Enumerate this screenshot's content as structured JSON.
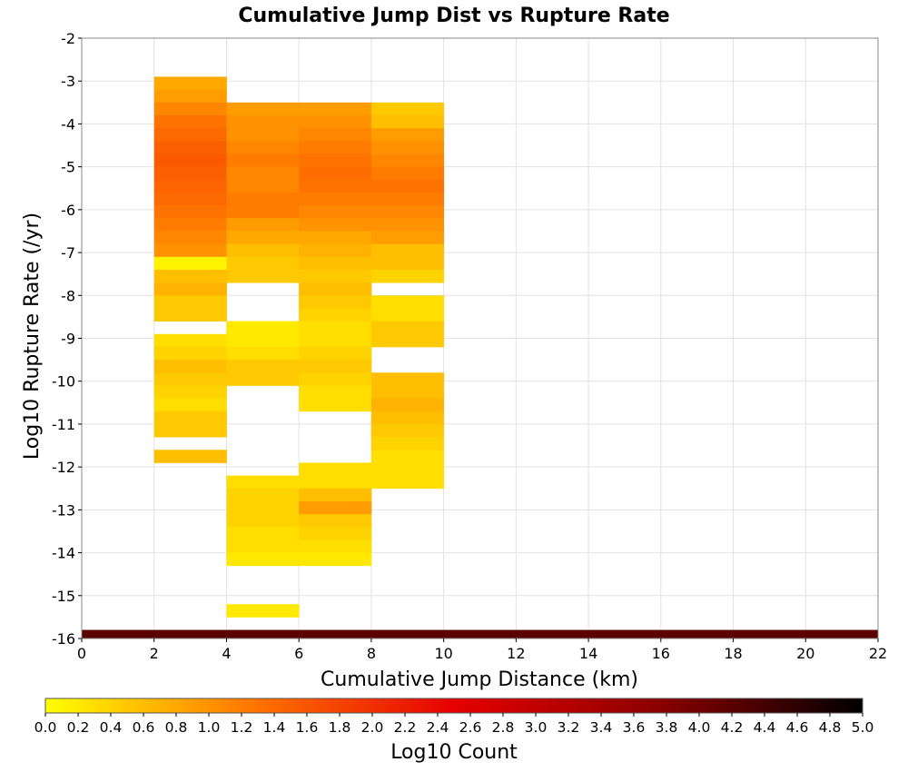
{
  "chart_data": {
    "type": "heatmap",
    "title": "Cumulative Jump Dist vs Rupture Rate",
    "xlabel": "Cumulative Jump Distance (km)",
    "ylabel": "Log10 Rupture Rate (/yr)",
    "colorbar_label": "Log10 Count",
    "xlim": [
      0,
      22
    ],
    "ylim": [
      -16,
      -2
    ],
    "x_ticks": [
      "0",
      "2",
      "4",
      "6",
      "8",
      "10",
      "12",
      "14",
      "16",
      "18",
      "20",
      "22"
    ],
    "y_ticks": [
      "-2",
      "-3",
      "-4",
      "-5",
      "-6",
      "-7",
      "-8",
      "-9",
      "-10",
      "-11",
      "-12",
      "-13",
      "-14",
      "-15",
      "-16"
    ],
    "colorbar_range": [
      0,
      5
    ],
    "colorbar_ticks": [
      "0.0",
      "0.2",
      "0.4",
      "0.6",
      "0.8",
      "1.0",
      "1.2",
      "1.4",
      "1.6",
      "1.8",
      "2.0",
      "2.2",
      "2.4",
      "2.6",
      "2.8",
      "3.0",
      "3.2",
      "3.4",
      "3.6",
      "3.8",
      "4.0",
      "4.2",
      "4.4",
      "4.6",
      "4.8",
      "5.0"
    ],
    "grid": true,
    "colorscale": [
      "#ffff00",
      "#ff7700",
      "#e60000",
      "#8c0000",
      "#000000"
    ],
    "x_bin_edges": [
      0,
      2,
      4,
      6,
      8,
      10,
      12,
      14,
      16,
      18,
      20,
      22
    ],
    "y_bin_width": 0.3,
    "y_bin_top": -2,
    "column_values": [
      [
        null,
        null,
        null,
        null,
        null,
        null,
        null,
        null,
        null,
        null,
        null,
        null,
        null,
        null,
        null,
        null,
        null,
        null,
        null,
        null,
        null,
        null,
        null,
        null,
        null,
        null,
        null,
        null,
        null,
        null,
        null,
        null,
        null,
        null,
        null,
        null,
        null,
        null,
        null,
        null,
        null,
        null,
        null,
        null,
        null,
        null,
        4.2
      ],
      [
        null,
        null,
        null,
        0.8,
        0.9,
        1.1,
        1.3,
        1.4,
        1.5,
        1.55,
        1.5,
        1.45,
        1.4,
        1.3,
        1.2,
        1.1,
        1.0,
        0.1,
        0.6,
        0.7,
        0.5,
        0.5,
        null,
        0.3,
        0.4,
        0.6,
        0.5,
        0.4,
        0.3,
        0.5,
        0.5,
        null,
        0.6,
        null,
        null,
        null,
        null,
        null,
        null,
        null,
        null,
        null,
        null,
        null,
        null,
        null,
        4.2
      ],
      [
        null,
        null,
        null,
        null,
        null,
        0.9,
        1.0,
        1.0,
        1.1,
        1.2,
        1.1,
        1.1,
        1.2,
        1.2,
        0.9,
        0.8,
        0.6,
        0.5,
        0.5,
        null,
        null,
        null,
        0.2,
        0.2,
        0.3,
        0.5,
        0.5,
        null,
        null,
        null,
        null,
        null,
        null,
        null,
        0.3,
        0.4,
        0.4,
        0.4,
        0.3,
        0.3,
        0.2,
        null,
        null,
        null,
        0.2,
        null,
        4.2
      ],
      [
        null,
        null,
        null,
        null,
        null,
        0.9,
        1.0,
        1.1,
        1.2,
        1.3,
        1.35,
        1.3,
        1.2,
        1.1,
        1.0,
        0.8,
        0.7,
        0.6,
        0.5,
        0.6,
        0.5,
        0.4,
        0.3,
        0.3,
        0.4,
        0.5,
        0.4,
        0.3,
        0.3,
        null,
        null,
        null,
        null,
        0.3,
        0.3,
        0.6,
        0.9,
        0.5,
        0.4,
        0.3,
        0.2,
        null,
        null,
        null,
        null,
        null,
        4.2
      ],
      [
        null,
        null,
        null,
        null,
        null,
        0.5,
        0.6,
        0.9,
        1.0,
        1.1,
        1.2,
        1.3,
        1.2,
        1.1,
        1.0,
        0.9,
        0.6,
        0.6,
        0.4,
        null,
        0.3,
        0.3,
        0.5,
        0.5,
        null,
        null,
        0.6,
        0.6,
        0.7,
        0.6,
        0.5,
        0.4,
        0.3,
        0.3,
        0.3,
        null,
        null,
        null,
        null,
        null,
        null,
        null,
        null,
        null,
        null,
        null,
        4.2
      ],
      [
        null,
        null,
        null,
        null,
        null,
        null,
        null,
        null,
        null,
        null,
        null,
        null,
        null,
        null,
        null,
        null,
        null,
        null,
        null,
        null,
        null,
        null,
        null,
        null,
        null,
        null,
        null,
        null,
        null,
        null,
        null,
        null,
        null,
        null,
        null,
        null,
        null,
        null,
        null,
        null,
        null,
        null,
        null,
        null,
        null,
        null,
        4.2
      ],
      [
        null,
        null,
        null,
        null,
        null,
        null,
        null,
        null,
        null,
        null,
        null,
        null,
        null,
        null,
        null,
        null,
        null,
        null,
        null,
        null,
        null,
        null,
        null,
        null,
        null,
        null,
        null,
        null,
        null,
        null,
        null,
        null,
        null,
        null,
        null,
        null,
        null,
        null,
        null,
        null,
        null,
        null,
        null,
        null,
        null,
        null,
        4.2
      ],
      [
        null,
        null,
        null,
        null,
        null,
        null,
        null,
        null,
        null,
        null,
        null,
        null,
        null,
        null,
        null,
        null,
        null,
        null,
        null,
        null,
        null,
        null,
        null,
        null,
        null,
        null,
        null,
        null,
        null,
        null,
        null,
        null,
        null,
        null,
        null,
        null,
        null,
        null,
        null,
        null,
        null,
        null,
        null,
        null,
        null,
        null,
        4.2
      ],
      [
        null,
        null,
        null,
        null,
        null,
        null,
        null,
        null,
        null,
        null,
        null,
        null,
        null,
        null,
        null,
        null,
        null,
        null,
        null,
        null,
        null,
        null,
        null,
        null,
        null,
        null,
        null,
        null,
        null,
        null,
        null,
        null,
        null,
        null,
        null,
        null,
        null,
        null,
        null,
        null,
        null,
        null,
        null,
        null,
        null,
        null,
        4.2
      ],
      [
        null,
        null,
        null,
        null,
        null,
        null,
        null,
        null,
        null,
        null,
        null,
        null,
        null,
        null,
        null,
        null,
        null,
        null,
        null,
        null,
        null,
        null,
        null,
        null,
        null,
        null,
        null,
        null,
        null,
        null,
        null,
        null,
        null,
        null,
        null,
        null,
        null,
        null,
        null,
        null,
        null,
        null,
        null,
        null,
        null,
        null,
        4.2
      ],
      [
        null,
        null,
        null,
        null,
        null,
        null,
        null,
        null,
        null,
        null,
        null,
        null,
        null,
        null,
        null,
        null,
        null,
        null,
        null,
        null,
        null,
        null,
        null,
        null,
        null,
        null,
        null,
        null,
        null,
        null,
        null,
        null,
        null,
        null,
        null,
        null,
        null,
        null,
        null,
        null,
        null,
        null,
        null,
        null,
        null,
        null,
        4.2
      ]
    ]
  }
}
